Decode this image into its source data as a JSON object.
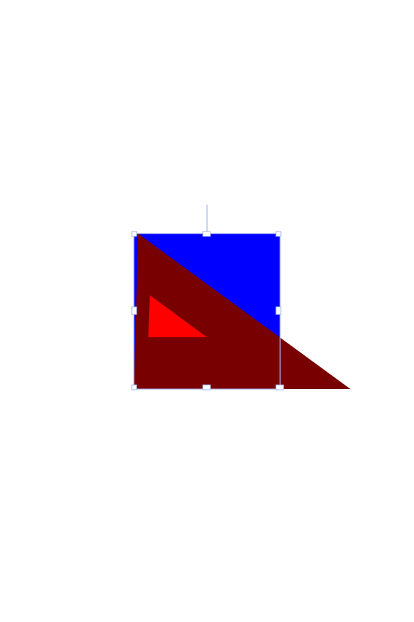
{
  "canvas": {
    "background": "#ffffff"
  },
  "shapes": [
    {
      "name": "blue-rectangle",
      "kind": "rectangle",
      "fill": "#0000ff"
    },
    {
      "name": "dark-red-triangle",
      "kind": "right-triangle",
      "fill": "#780000"
    },
    {
      "name": "red-triangle",
      "kind": "right-triangle",
      "fill": "#ff0000"
    }
  ],
  "selection": {
    "border_color": "#a9bbf0",
    "handle_fill": "#ffffff",
    "handle_stroke": "#9fb4e8",
    "rotation_handle": true
  }
}
